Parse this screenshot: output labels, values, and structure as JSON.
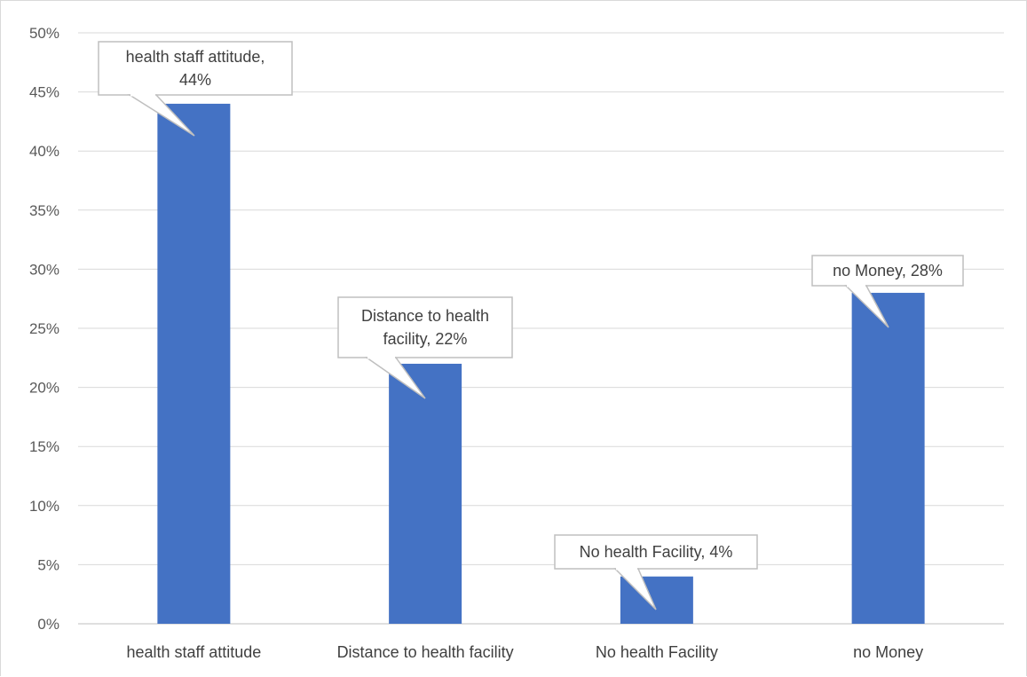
{
  "chart_data": {
    "type": "bar",
    "title": "",
    "xlabel": "",
    "ylabel": "",
    "ylim": [
      0,
      0.5
    ],
    "y_ticks": [
      "0%",
      "5%",
      "10%",
      "15%",
      "20%",
      "25%",
      "30%",
      "35%",
      "40%",
      "45%",
      "50%"
    ],
    "grid": true,
    "legend": "none",
    "categories": [
      "health staff attitude",
      "Distance to health facility",
      "No health Facility",
      "no Money"
    ],
    "values": [
      0.44,
      0.22,
      0.04,
      0.28
    ],
    "data_labels": [
      [
        "health staff attitude,",
        "44%"
      ],
      [
        "Distance to health",
        "facility, 22%"
      ],
      [
        "No health Facility, 4%"
      ],
      [
        "no Money, 28%"
      ]
    ],
    "bar_color": "#4472c4"
  }
}
